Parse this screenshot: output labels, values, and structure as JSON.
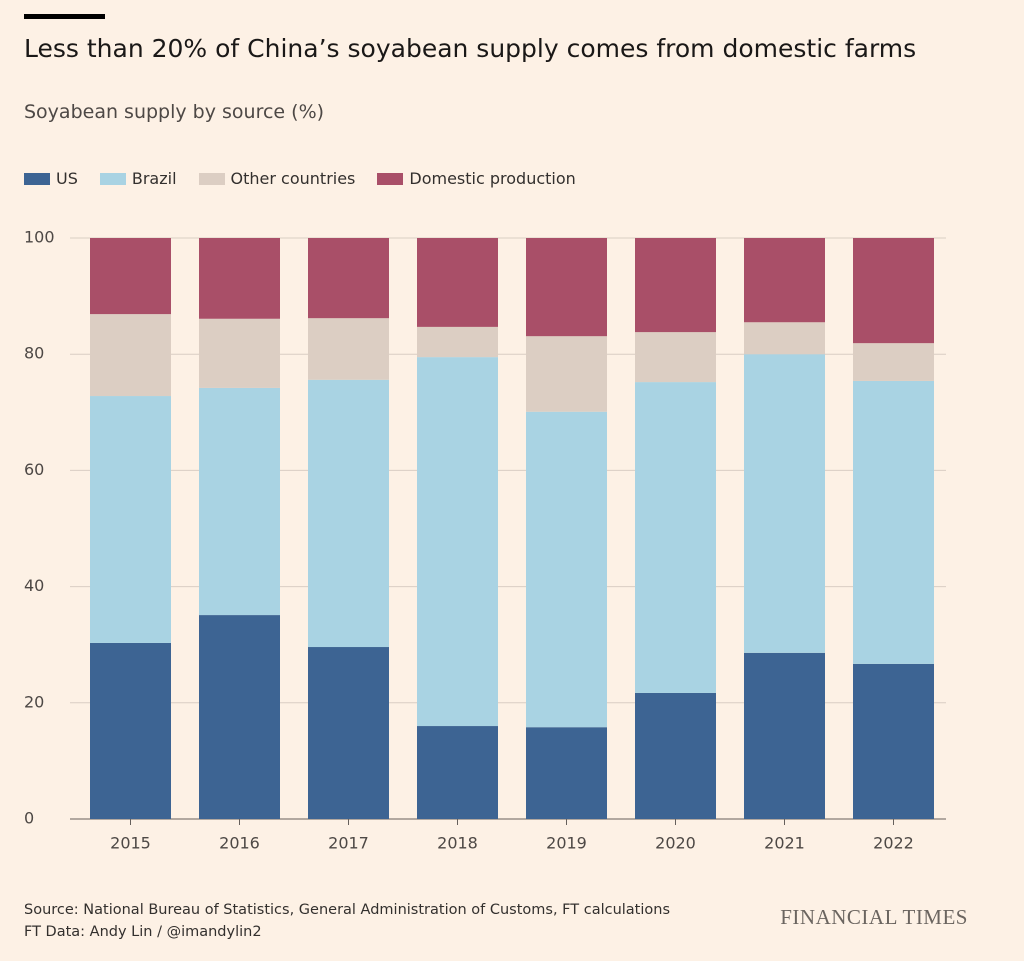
{
  "chart_data": {
    "type": "stacked_bar",
    "title": "Less than 20% of China’s soyabean supply comes from domestic farms",
    "subtitle": "Soyabean supply by source (%)",
    "categories": [
      "2015",
      "2016",
      "2017",
      "2018",
      "2019",
      "2020",
      "2021",
      "2022"
    ],
    "series": [
      {
        "name": "US",
        "color": "#3d6493",
        "values": [
          30.3,
          35.1,
          29.6,
          16.0,
          15.8,
          21.7,
          28.6,
          26.7
        ]
      },
      {
        "name": "Brazil",
        "color": "#a9d3e3",
        "values": [
          42.5,
          39.1,
          46.0,
          63.5,
          54.3,
          53.5,
          51.4,
          48.7
        ]
      },
      {
        "name": "Other countries",
        "color": "#dccec3",
        "values": [
          14.1,
          11.9,
          10.6,
          5.2,
          13.0,
          8.6,
          5.5,
          6.5
        ]
      },
      {
        "name": "Domestic production",
        "color": "#a94f68",
        "values": [
          13.1,
          13.9,
          13.8,
          15.3,
          16.9,
          16.2,
          14.5,
          18.1
        ]
      }
    ],
    "ylim": [
      0,
      100
    ],
    "yticks": [
      0,
      20,
      40,
      60,
      80,
      100
    ],
    "grid": true,
    "source": [
      "Source: National Bureau of Statistics, General Administration of Customs, FT calculations",
      "FT Data: Andy Lin / @imandylin2"
    ],
    "logo": "FINANCIAL TIMES"
  }
}
